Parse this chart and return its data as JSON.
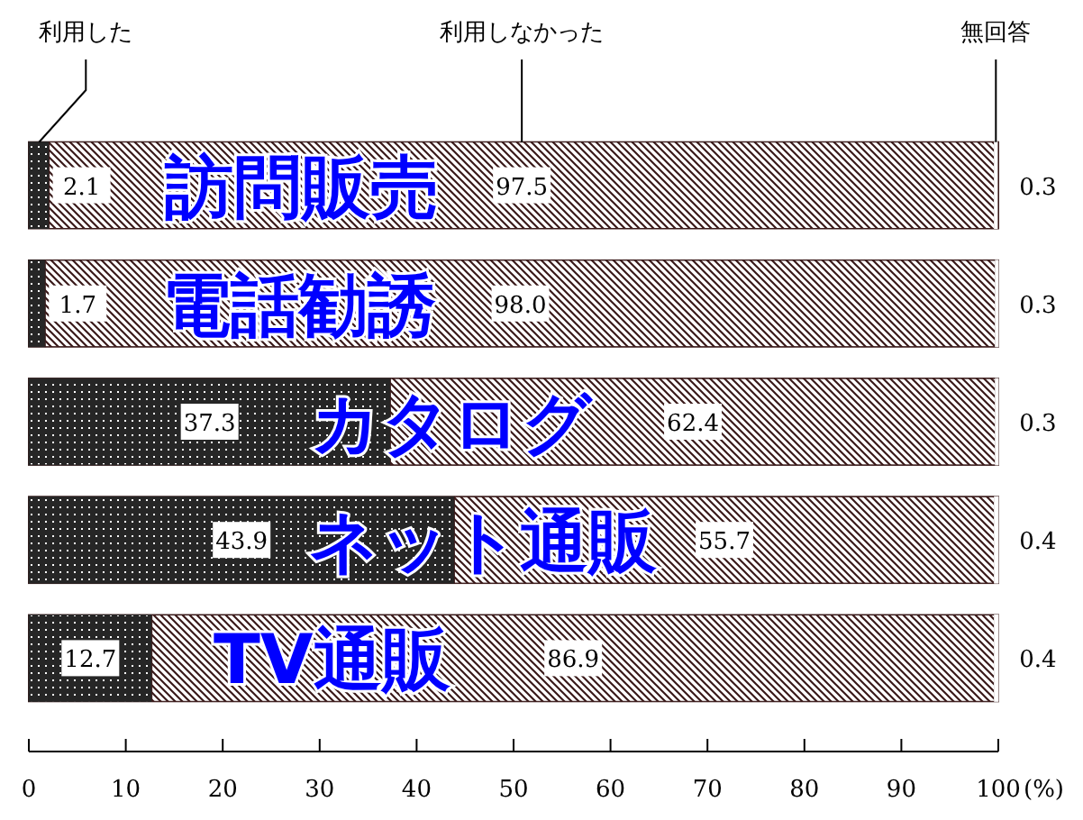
{
  "chart_data": {
    "type": "bar",
    "orientation": "horizontal",
    "stacked": true,
    "categories": [
      "訪問販売",
      "電話勧誘",
      "カタログ",
      "ネット通販",
      "TV通販"
    ],
    "series": [
      {
        "name": "利用した",
        "color": "#262626",
        "values": [
          2.1,
          1.7,
          37.3,
          43.9,
          12.7
        ],
        "value_labels": [
          "2.1",
          "1.7",
          "37.3",
          "43.9",
          "12.7"
        ]
      },
      {
        "name": "利用しなかった",
        "color": "#3a1a1a",
        "values": [
          97.5,
          98.0,
          62.4,
          55.7,
          86.9
        ],
        "value_labels": [
          "97.5",
          "98.0",
          "62.4",
          "55.7",
          "86.9"
        ]
      },
      {
        "name": "無回答",
        "color": "#ffffff",
        "values": [
          0.3,
          0.3,
          0.3,
          0.4,
          0.4
        ],
        "value_labels": [
          "0.3",
          "0.3",
          "0.3",
          "0.4",
          "0.4"
        ]
      }
    ],
    "xlabel": "(%)",
    "xlim": [
      0,
      100
    ],
    "xticks": [
      0,
      10,
      20,
      30,
      40,
      50,
      60,
      70,
      80,
      90,
      100
    ],
    "legend": "top",
    "grid": false
  }
}
